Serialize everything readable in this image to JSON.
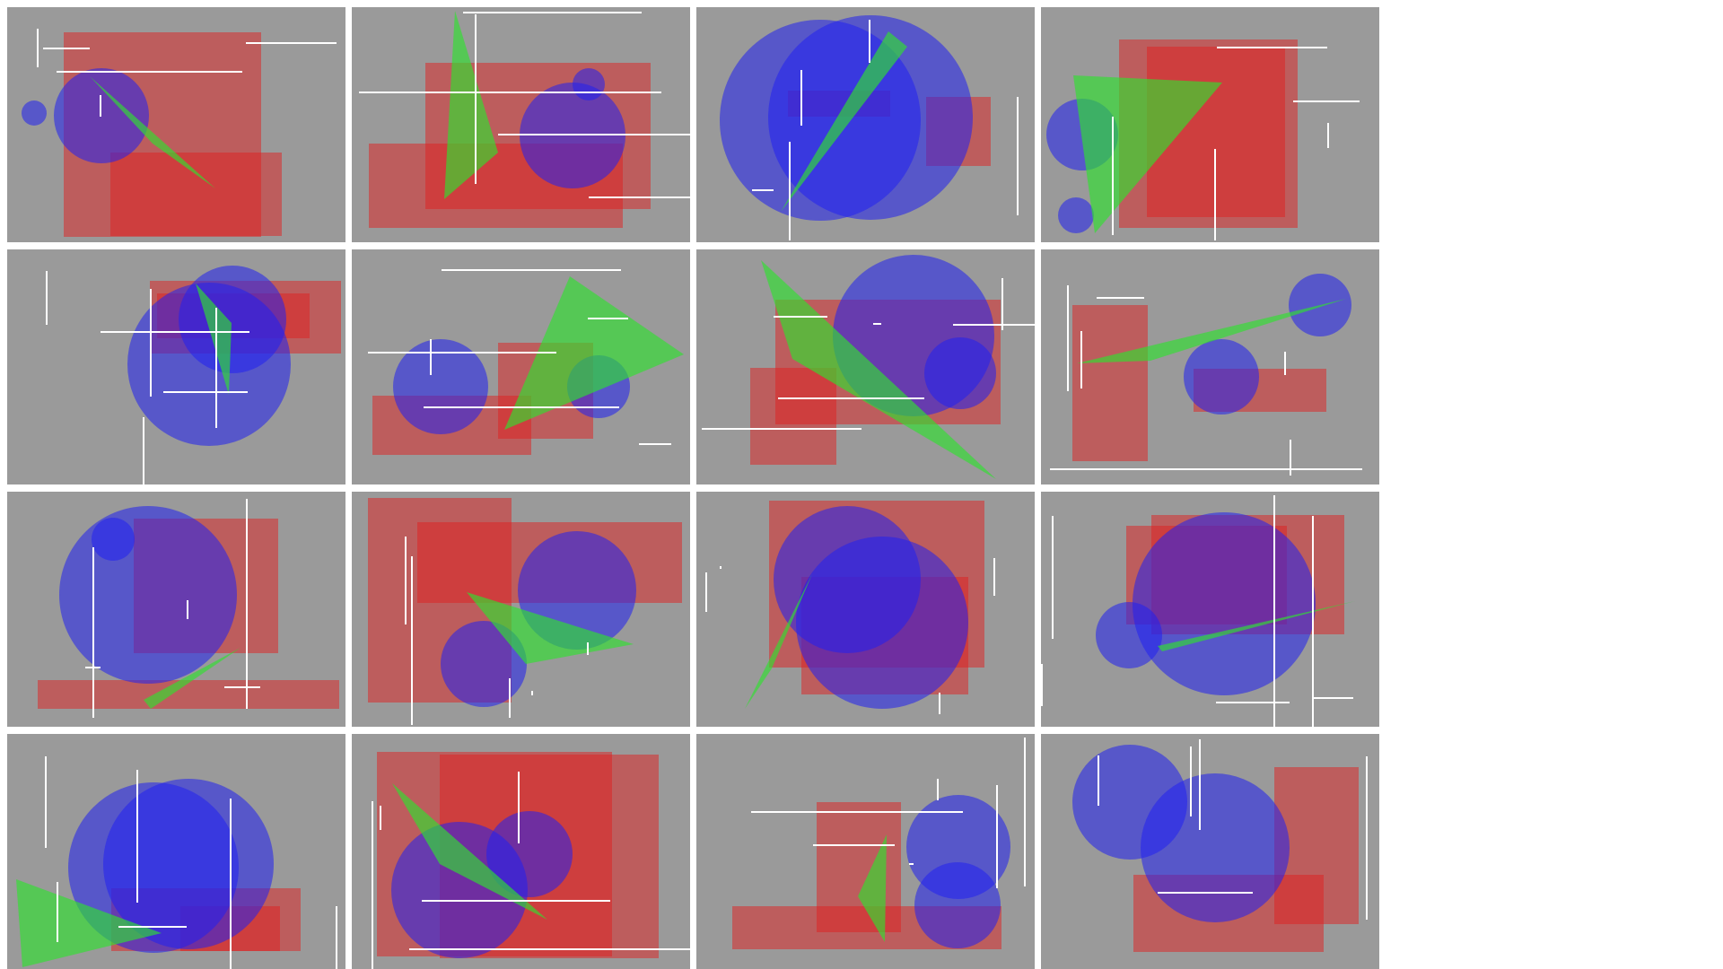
{
  "colors": {
    "background": "#ffffff",
    "panel": "#9a9a9a",
    "rect": "#e02020",
    "circle": "#2020f0",
    "triangle": "#30e030",
    "line": "#ffffff"
  },
  "grid": {
    "rows": 4,
    "columns": 4,
    "panel_count": 16
  },
  "shape_types": [
    "rectangle",
    "circle",
    "triangle",
    "line"
  ]
}
